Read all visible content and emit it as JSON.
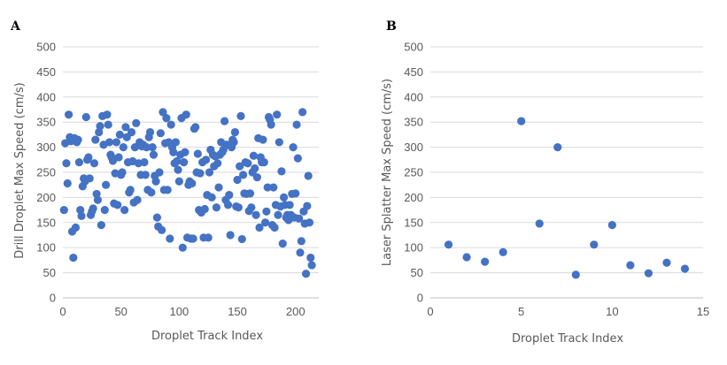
{
  "chart_data": [
    {
      "type": "scatter",
      "panel_label": "A",
      "title": "",
      "xlabel": "Droplet Track Index",
      "ylabel": "Drill Droplet Max Speed (cm/s)",
      "xlim": [
        0,
        220
      ],
      "ylim": [
        0,
        500
      ],
      "xticks": [
        0,
        50,
        100,
        150,
        200
      ],
      "yticks": [
        0,
        50,
        100,
        150,
        200,
        250,
        300,
        350,
        400,
        450,
        500
      ],
      "grid": "horizontal",
      "color": "#4472c4",
      "series": [
        {
          "points": [
            [
              1,
              175
            ],
            [
              2,
              308
            ],
            [
              3,
              268
            ],
            [
              4,
              228
            ],
            [
              5,
              365
            ],
            [
              6,
              320
            ],
            [
              7,
              312
            ],
            [
              8,
              132
            ],
            [
              9,
              80
            ],
            [
              10,
              318
            ],
            [
              11,
              140
            ],
            [
              12,
              310
            ],
            [
              13,
              315
            ],
            [
              14,
              270
            ],
            [
              15,
              175
            ],
            [
              16,
              163
            ],
            [
              17,
              222
            ],
            [
              18,
              238
            ],
            [
              19,
              232
            ],
            [
              20,
              360
            ],
            [
              21,
              275
            ],
            [
              22,
              280
            ],
            [
              23,
              238
            ],
            [
              24,
              165
            ],
            [
              25,
              172
            ],
            [
              26,
              178
            ],
            [
              27,
              268
            ],
            [
              28,
              315
            ],
            [
              29,
              207
            ],
            [
              30,
              195
            ],
            [
              31,
              330
            ],
            [
              32,
              342
            ],
            [
              33,
              145
            ],
            [
              34,
              362
            ],
            [
              35,
              305
            ],
            [
              36,
              175
            ],
            [
              37,
              225
            ],
            [
              38,
              365
            ],
            [
              39,
              345
            ],
            [
              40,
              310
            ],
            [
              41,
              285
            ],
            [
              42,
              280
            ],
            [
              43,
              273
            ],
            [
              44,
              188
            ],
            [
              45,
              248
            ],
            [
              46,
              310
            ],
            [
              47,
              185
            ],
            [
              48,
              280
            ],
            [
              49,
              325
            ],
            [
              50,
              245
            ],
            [
              51,
              250
            ],
            [
              52,
              300
            ],
            [
              53,
              175
            ],
            [
              54,
              340
            ],
            [
              55,
              320
            ],
            [
              56,
              270
            ],
            [
              57,
              210
            ],
            [
              58,
              215
            ],
            [
              59,
              330
            ],
            [
              60,
              272
            ],
            [
              61,
              190
            ],
            [
              62,
              300
            ],
            [
              63,
              348
            ],
            [
              64,
              195
            ],
            [
              65,
              268
            ],
            [
              66,
              310
            ],
            [
              67,
              245
            ],
            [
              68,
              302
            ],
            [
              69,
              305
            ],
            [
              70,
              270
            ],
            [
              71,
              245
            ],
            [
              72,
              300
            ],
            [
              73,
              215
            ],
            [
              74,
              320
            ],
            [
              75,
              330
            ],
            [
              76,
              210
            ],
            [
              77,
              300
            ],
            [
              78,
              285
            ],
            [
              79,
              243
            ],
            [
              80,
              232
            ],
            [
              81,
              160
            ],
            [
              82,
              142
            ],
            [
              83,
              250
            ],
            [
              84,
              328
            ],
            [
              85,
              135
            ],
            [
              86,
              370
            ],
            [
              87,
              215
            ],
            [
              88,
              308
            ],
            [
              89,
              358
            ],
            [
              90,
              215
            ],
            [
              91,
              310
            ],
            [
              92,
              118
            ],
            [
              93,
              345
            ],
            [
              94,
              300
            ],
            [
              95,
              290
            ],
            [
              96,
              268
            ],
            [
              97,
              310
            ],
            [
              98,
              272
            ],
            [
              99,
              255
            ],
            [
              100,
              232
            ],
            [
              101,
              285
            ],
            [
              102,
              358
            ],
            [
              103,
              100
            ],
            [
              104,
              270
            ],
            [
              105,
              290
            ],
            [
              106,
              365
            ],
            [
              107,
              120
            ],
            [
              108,
              225
            ],
            [
              109,
              232
            ],
            [
              110,
              118
            ],
            [
              111,
              228
            ],
            [
              112,
              118
            ],
            [
              113,
              337
            ],
            [
              114,
              340
            ],
            [
              115,
              250
            ],
            [
              116,
              287
            ],
            [
              117,
              175
            ],
            [
              118,
              248
            ],
            [
              119,
              170
            ],
            [
              120,
              270
            ],
            [
              121,
              120
            ],
            [
              122,
              177
            ],
            [
              123,
              275
            ],
            [
              124,
              205
            ],
            [
              125,
              120
            ],
            [
              126,
              250
            ],
            [
              127,
              295
            ],
            [
              128,
              200
            ],
            [
              129,
              285
            ],
            [
              130,
              262
            ],
            [
              131,
              282
            ],
            [
              132,
              180
            ],
            [
              133,
              268
            ],
            [
              134,
              220
            ],
            [
              135,
              285
            ],
            [
              136,
              310
            ],
            [
              137,
              290
            ],
            [
              138,
              295
            ],
            [
              139,
              352
            ],
            [
              140,
              195
            ],
            [
              141,
              305
            ],
            [
              142,
              185
            ],
            [
              143,
              205
            ],
            [
              144,
              125
            ],
            [
              145,
              300
            ],
            [
              146,
              315
            ],
            [
              147,
              310
            ],
            [
              148,
              330
            ],
            [
              149,
              182
            ],
            [
              150,
              235
            ],
            [
              151,
              180
            ],
            [
              152,
              262
            ],
            [
              153,
              362
            ],
            [
              154,
              117
            ],
            [
              155,
              245
            ],
            [
              156,
              208
            ],
            [
              157,
              270
            ],
            [
              158,
              207
            ],
            [
              159,
              268
            ],
            [
              160,
              173
            ],
            [
              161,
              208
            ],
            [
              162,
              180
            ],
            [
              163,
              250
            ],
            [
              164,
              283
            ],
            [
              165,
              258
            ],
            [
              166,
              165
            ],
            [
              167,
              240
            ],
            [
              168,
              318
            ],
            [
              169,
              140
            ],
            [
              170,
              280
            ],
            [
              171,
              270
            ],
            [
              172,
              315
            ],
            [
              173,
              270
            ],
            [
              174,
              150
            ],
            [
              175,
              172
            ],
            [
              176,
              220
            ],
            [
              177,
              360
            ],
            [
              178,
              355
            ],
            [
              179,
              345
            ],
            [
              180,
              145
            ],
            [
              181,
              220
            ],
            [
              182,
              140
            ],
            [
              183,
              185
            ],
            [
              184,
              365
            ],
            [
              185,
              165
            ],
            [
              186,
              310
            ],
            [
              187,
              182
            ],
            [
              188,
              252
            ],
            [
              189,
              108
            ],
            [
              190,
              200
            ],
            [
              191,
              185
            ],
            [
              192,
              160
            ],
            [
              193,
              165
            ],
            [
              194,
              155
            ],
            [
              195,
              185
            ],
            [
              196,
              165
            ],
            [
              197,
              207
            ],
            [
              198,
              300
            ],
            [
              199,
              160
            ],
            [
              200,
              208
            ],
            [
              201,
              345
            ],
            [
              202,
              278
            ],
            [
              203,
              158
            ],
            [
              204,
              90
            ],
            [
              205,
              113
            ],
            [
              206,
              370
            ],
            [
              207,
              172
            ],
            [
              208,
              148
            ],
            [
              209,
              48
            ],
            [
              210,
              183
            ],
            [
              211,
              243
            ],
            [
              212,
              150
            ],
            [
              213,
              80
            ],
            [
              214,
              65
            ]
          ]
        }
      ]
    },
    {
      "type": "scatter",
      "panel_label": "B",
      "title": "",
      "xlabel": "Droplet Track Index",
      "ylabel": "Laser Splatter Max Speed (cm/s)",
      "xlim": [
        0,
        15
      ],
      "ylim": [
        0,
        500
      ],
      "xticks": [
        0,
        5,
        10,
        15
      ],
      "yticks": [
        0,
        50,
        100,
        150,
        200,
        250,
        300,
        350,
        400,
        450,
        500
      ],
      "grid": "horizontal",
      "color": "#4472c4",
      "series": [
        {
          "points": [
            [
              1,
              106
            ],
            [
              2,
              81
            ],
            [
              3,
              72
            ],
            [
              4,
              91
            ],
            [
              5,
              352
            ],
            [
              6,
              148
            ],
            [
              7,
              300
            ],
            [
              8,
              46
            ],
            [
              9,
              106
            ],
            [
              10,
              145
            ],
            [
              11,
              65
            ],
            [
              12,
              49
            ],
            [
              13,
              70
            ],
            [
              14,
              58
            ]
          ]
        }
      ]
    }
  ]
}
